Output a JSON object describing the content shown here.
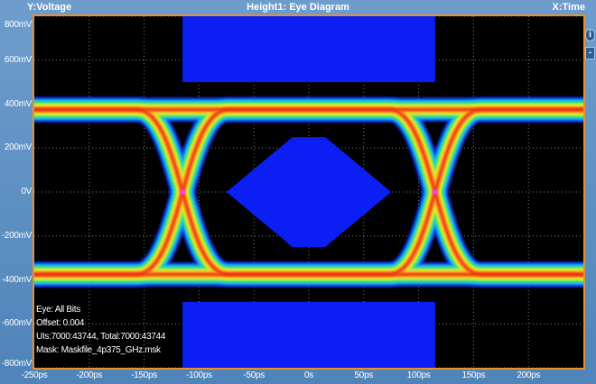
{
  "header": {
    "y_label": "Y:Voltage",
    "title": "Height1: Eye Diagram",
    "x_label": "X:Time"
  },
  "side_controls": {
    "info_icon": "info-icon",
    "minus_label": "-"
  },
  "info": {
    "eye": "Eye: All Bits",
    "offset": "Offset: 0.004",
    "counts": "UIs:7000:43744, Total:7000:43744",
    "mask": "Mask: Maskfile_4p375_GHz.msk"
  },
  "colors": {
    "mask": "#0b1ff5",
    "background": "#000000",
    "frame": "#e8902a",
    "title_bg": "#5a8fc2"
  },
  "chart_data": {
    "type": "heatmap",
    "title": "Height1: Eye Diagram",
    "xlabel": "X:Time",
    "ylabel": "Y:Voltage",
    "xlim": [
      -250,
      250
    ],
    "ylim": [
      -800,
      800
    ],
    "x_unit": "ps",
    "y_unit": "mV",
    "x_ticks": [
      "-250ps",
      "-200ps",
      "-150ps",
      "-100ps",
      "-50ps",
      "0s",
      "50ps",
      "100ps",
      "150ps",
      "200ps"
    ],
    "x_tick_values": [
      -250,
      -200,
      -150,
      -100,
      -50,
      0,
      50,
      100,
      150,
      200
    ],
    "y_ticks": [
      "800mV",
      "600mV",
      "400mV",
      "200mV",
      "0V",
      "-200mV",
      "-400mV",
      "-600mV",
      "-800mV"
    ],
    "y_tick_values": [
      800,
      600,
      400,
      200,
      0,
      -200,
      -400,
      -600,
      -800
    ],
    "grid": true,
    "eye": {
      "high_level": 375,
      "low_level": -375,
      "band": 55,
      "crossings": [
        -115,
        115
      ],
      "crossing_voltage": 0
    },
    "mask_regions": [
      {
        "name": "top-mask",
        "x_range": [
          -115,
          115
        ],
        "y_range": [
          500,
          800
        ]
      },
      {
        "name": "bottom-mask",
        "x_range": [
          -115,
          115
        ],
        "y_range": [
          -800,
          -500
        ]
      },
      {
        "name": "center-mask",
        "points": [
          [
            -75,
            0
          ],
          [
            -15,
            250
          ],
          [
            15,
            250
          ],
          [
            75,
            0
          ],
          [
            15,
            -250
          ],
          [
            -15,
            -250
          ]
        ]
      }
    ]
  }
}
